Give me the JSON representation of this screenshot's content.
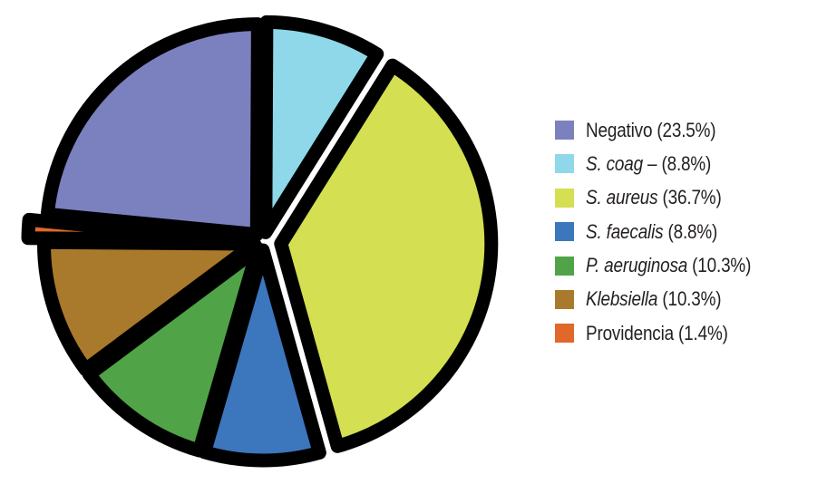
{
  "chart_data": {
    "type": "pie",
    "legend_position": "right",
    "slices": [
      {
        "name": "Negativo",
        "value": 23.5,
        "color": "#7b80bf"
      },
      {
        "name": "S. coag –",
        "value": 8.8,
        "color": "#8ed8ea"
      },
      {
        "name": "S. aureus",
        "value": 36.7,
        "color": "#d4df52"
      },
      {
        "name": "S. faecalis",
        "value": 8.8,
        "color": "#3c76bd"
      },
      {
        "name": "P. aeruginosa",
        "value": 10.3,
        "color": "#50a447"
      },
      {
        "name": "Klebsiella",
        "value": 10.3,
        "color": "#aa7a2c"
      },
      {
        "name": "Providencia",
        "value": 1.4,
        "color": "#e0682a"
      }
    ],
    "legend": [
      {
        "italic": "",
        "plain": "Negativo (23.5%)"
      },
      {
        "italic": "S. coag",
        "plain": " – (8.8%)"
      },
      {
        "italic": "S. aureus",
        "plain": " (36.7%)"
      },
      {
        "italic": "S. faecalis",
        "plain": " (8.8%)"
      },
      {
        "italic": "P. aeruginosa",
        "plain": " (10.3%)"
      },
      {
        "italic": "Klebsiella",
        "plain": " (10.3%)"
      },
      {
        "italic": "",
        "plain": "Providencia (1.4%)"
      }
    ]
  }
}
